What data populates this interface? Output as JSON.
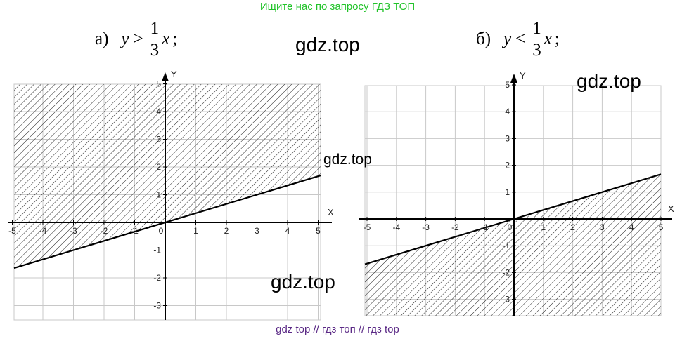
{
  "header": {
    "banner": "Ищите нас по запросу ГДЗ ТОП"
  },
  "footer": {
    "banner": "gdz top  //  гдз топ  //  гдз top"
  },
  "watermarks": [
    "gdz.top",
    "gdz.top",
    "gdz.top",
    "gdz.top"
  ],
  "graphs": [
    {
      "label": "а)",
      "lhs": "y",
      "op": ">",
      "numerator": "1",
      "denominator": "3",
      "rhs_var": "x",
      "tail": ";",
      "shade": "above"
    },
    {
      "label": "б)",
      "lhs": "y",
      "op": "<",
      "numerator": "1",
      "denominator": "3",
      "rhs_var": "x",
      "tail": ";",
      "shade": "below"
    }
  ],
  "chart_data": [
    {
      "type": "line",
      "title": "y > 1/3 x",
      "xlabel": "X",
      "ylabel": "Y",
      "x_ticks": [
        "-5",
        "-4",
        "-3",
        "-2",
        "-1",
        "0",
        "1",
        "2",
        "3",
        "4",
        "5"
      ],
      "y_ticks": [
        "-3",
        "-2",
        "-1",
        "1",
        "2",
        "3",
        "4",
        "5"
      ],
      "xlim": [
        -5,
        5
      ],
      "ylim": [
        -3.5,
        5
      ],
      "line": {
        "slope": 0.3333,
        "intercept": 0
      },
      "shaded_region": "above the line"
    },
    {
      "type": "line",
      "title": "y < 1/3 x",
      "xlabel": "X",
      "ylabel": "Y",
      "x_ticks": [
        "-5",
        "-4",
        "-3",
        "-2",
        "-1",
        "0",
        "1",
        "2",
        "3",
        "4",
        "5"
      ],
      "y_ticks": [
        "-3",
        "-2",
        "-1",
        "1",
        "2",
        "3",
        "4",
        "5"
      ],
      "xlim": [
        -5,
        5
      ],
      "ylim": [
        -3.5,
        5
      ],
      "line": {
        "slope": 0.3333,
        "intercept": 0
      },
      "shaded_region": "below the line"
    }
  ]
}
